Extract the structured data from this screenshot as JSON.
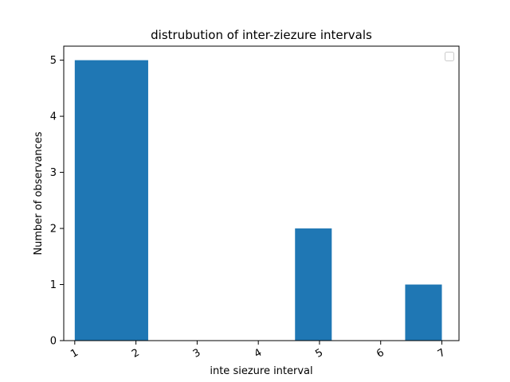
{
  "chart_data": {
    "type": "bar",
    "title": "distrubution of inter-ziezure intervals",
    "xlabel": "inte siezure interval",
    "ylabel": "Number of observances",
    "xlim": [
      0.82,
      7.28
    ],
    "ylim": [
      0,
      5.25
    ],
    "bar_color": "#1f77b4",
    "bars": [
      {
        "x0": 1.0,
        "x1": 2.2,
        "value": 5
      },
      {
        "x0": 2.2,
        "x1": 2.8,
        "value": 0
      },
      {
        "x0": 2.8,
        "x1": 3.4,
        "value": 0
      },
      {
        "x0": 3.4,
        "x1": 4.0,
        "value": 0
      },
      {
        "x0": 4.0,
        "x1": 4.6,
        "value": 0
      },
      {
        "x0": 4.6,
        "x1": 5.2,
        "value": 2
      },
      {
        "x0": 5.2,
        "x1": 5.8,
        "value": 0
      },
      {
        "x0": 5.8,
        "x1": 6.4,
        "value": 0
      },
      {
        "x0": 6.4,
        "x1": 7.0,
        "value": 1
      }
    ],
    "xticks": [
      {
        "pos": 1.0,
        "label": "1"
      },
      {
        "pos": 2.0,
        "label": "2"
      },
      {
        "pos": 3.0,
        "label": "3"
      },
      {
        "pos": 4.0,
        "label": "4"
      },
      {
        "pos": 5.0,
        "label": "5"
      },
      {
        "pos": 6.0,
        "label": "6"
      },
      {
        "pos": 7.0,
        "label": "7"
      }
    ],
    "yticks": [
      0,
      1,
      2,
      3,
      4,
      5
    ],
    "xtick_rotation_deg": -30,
    "legend": {
      "placement": "top-right",
      "entries": []
    },
    "grid": false
  }
}
